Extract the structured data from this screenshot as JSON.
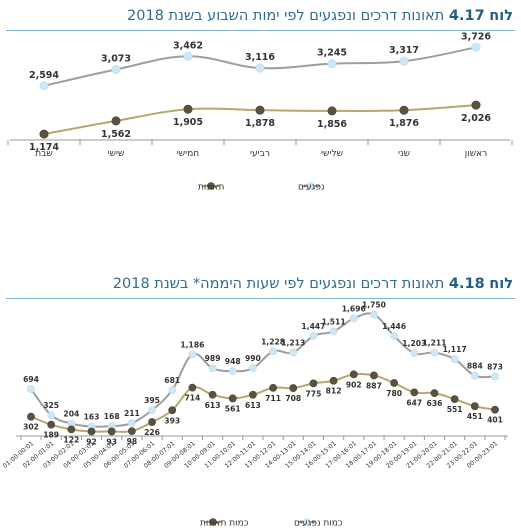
{
  "chart1": {
    "title_prefix": "לוח",
    "title_number": "4.17",
    "title_text": "תאונות דרכים ונפגעים לפי ימות השבוע בשנת 2018",
    "chart_data": {
      "type": "line",
      "categories": [
        "ראשון",
        "שני",
        "שלישי",
        "רביעי",
        "חמישי",
        "שישי",
        "שבת"
      ],
      "series": [
        {
          "name": "נפגעים",
          "values": [
            3726,
            3317,
            3245,
            3116,
            3462,
            3073,
            2594
          ],
          "color": "#9e9e9e",
          "marker": "#cce7f5"
        },
        {
          "name": "תאונות",
          "values": [
            2026,
            1876,
            1856,
            1878,
            1905,
            1562,
            1174
          ],
          "color": "#b5a86e",
          "marker": "#5a5142"
        }
      ],
      "legend": "bottom-center",
      "grid": false
    }
  },
  "chart2": {
    "title_prefix": "לוח",
    "title_number": "4.18",
    "title_text": "תאונות דרכים ונפגעים לפי שעות היממה* בשנת 2018",
    "chart_data": {
      "type": "line",
      "categories": [
        "01:00-00:01",
        "02:00-01:01",
        "03:00-02:01",
        "04:00-03:01",
        "05:00-04:01",
        "06:00-05:01",
        "07:00-06:01",
        "08:00-07:01",
        "09:00-08:01",
        "10:00-09:01",
        "11:00-10:01",
        "12:00-11:01",
        "13:00-12:01",
        "14:00-13:01",
        "15:00-14:01",
        "16:00-15:01",
        "17:00-16:01",
        "18:00-17:01",
        "19:00-18:01",
        "20:00-19:01",
        "21:00-20:01",
        "22:00-21:01",
        "23:00-22:01",
        "00:00-23:01"
      ],
      "series": [
        {
          "name": "כמות נפגעים",
          "values": [
            694,
            325,
            204,
            163,
            168,
            211,
            395,
            681,
            1186,
            989,
            948,
            990,
            1228,
            1213,
            1447,
            1511,
            1696,
            1750,
            1446,
            1203,
            1211,
            1117,
            884,
            873
          ],
          "color": "#9e9e9e",
          "marker": "#cce7f5"
        },
        {
          "name": "כמות תאונות",
          "values": [
            302,
            189,
            122,
            92,
            93,
            98,
            226,
            393,
            714,
            613,
            561,
            613,
            711,
            708,
            775,
            812,
            902,
            887,
            780,
            647,
            636,
            551,
            451,
            401
          ],
          "color": "#b5a86e",
          "marker": "#5a5142"
        }
      ],
      "legend": "bottom-center",
      "grid": false
    }
  }
}
